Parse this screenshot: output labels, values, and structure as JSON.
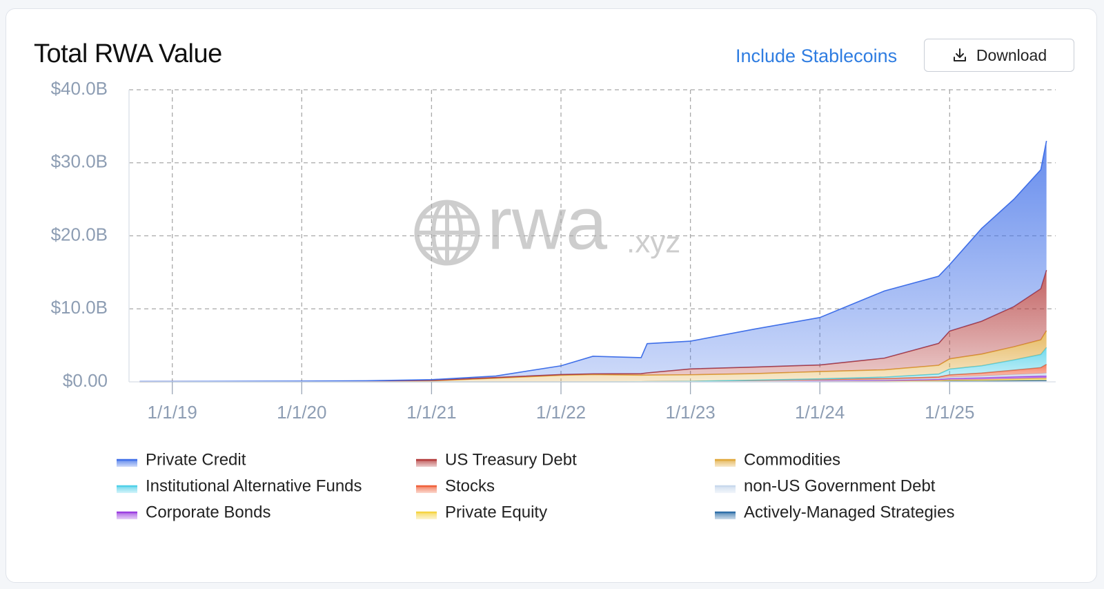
{
  "controls": {
    "toggle": "Include Stablecoins",
    "button": "Download"
  },
  "chart_data": {
    "type": "stacked-area",
    "title": "Total RWA Value",
    "watermark": [
      "rwa",
      ".xyz"
    ],
    "x": [
      "2018-10-01",
      "2019-01-01",
      "2019-07-01",
      "2020-01-01",
      "2020-07-01",
      "2021-01-01",
      "2021-07-01",
      "2022-01-01",
      "2022-04-01",
      "2022-08-15",
      "2022-09-01",
      "2023-01-01",
      "2023-07-01",
      "2024-01-01",
      "2024-07-01",
      "2024-12-01",
      "2025-01-01",
      "2025-04-01",
      "2025-07-01",
      "2025-09-15",
      "2025-10-01"
    ],
    "xlim": [
      "2018-09-01",
      "2025-10-27"
    ],
    "xticks": [
      {
        "value": "2019-01-01",
        "label": "1/1/19"
      },
      {
        "value": "2020-01-01",
        "label": "1/1/20"
      },
      {
        "value": "2021-01-01",
        "label": "1/1/21"
      },
      {
        "value": "2022-01-01",
        "label": "1/1/22"
      },
      {
        "value": "2023-01-01",
        "label": "1/1/23"
      },
      {
        "value": "2024-01-01",
        "label": "1/1/24"
      },
      {
        "value": "2025-01-01",
        "label": "1/1/25"
      }
    ],
    "ylim": [
      0,
      40
    ],
    "yticks": [
      {
        "value": 0,
        "label": "$0.00"
      },
      {
        "value": 10,
        "label": "$10.0B"
      },
      {
        "value": 20,
        "label": "$20.0B"
      },
      {
        "value": 30,
        "label": "$30.0B"
      },
      {
        "value": 40,
        "label": "$40.0B"
      }
    ],
    "grid": true,
    "legend": "bottom",
    "series": [
      {
        "name": "Private Credit",
        "color": "#3f6fe8",
        "values": [
          0.03,
          0.02,
          0.04,
          0.05,
          0.07,
          0.1,
          0.2,
          1.2,
          2.4,
          2.2,
          4.0,
          3.8,
          5.2,
          6.5,
          9.2,
          9.2,
          9.1,
          12.7,
          14.7,
          16.3,
          17.7
        ]
      },
      {
        "name": "US Treasury Debt",
        "color": "#b33a3a",
        "values": [
          0,
          0,
          0,
          0,
          0,
          0.05,
          0.1,
          0.1,
          0.1,
          0.2,
          0.3,
          0.8,
          0.9,
          0.9,
          1.6,
          3.0,
          3.8,
          4.5,
          5.5,
          7.0,
          8.3
        ]
      },
      {
        "name": "Commodities",
        "color": "#e0a83a",
        "values": [
          0.02,
          0.03,
          0.04,
          0.05,
          0.08,
          0.15,
          0.5,
          0.9,
          1.0,
          0.9,
          0.9,
          0.9,
          0.9,
          1.0,
          1.0,
          1.2,
          1.4,
          1.6,
          1.8,
          2.0,
          2.3
        ]
      },
      {
        "name": "Institutional Alternative Funds",
        "color": "#4fd0e8",
        "values": [
          0,
          0,
          0,
          0,
          0,
          0,
          0,
          0,
          0,
          0,
          0,
          0,
          0.05,
          0.1,
          0.2,
          0.4,
          0.8,
          1.0,
          1.4,
          1.8,
          2.3
        ]
      },
      {
        "name": "Stocks",
        "color": "#f0603a",
        "values": [
          0,
          0,
          0,
          0,
          0,
          0,
          0,
          0,
          0,
          0.02,
          0.03,
          0.05,
          0.08,
          0.1,
          0.15,
          0.2,
          0.3,
          0.4,
          0.6,
          0.8,
          1.2
        ]
      },
      {
        "name": "non-US Government Debt",
        "color": "#c8d8ec",
        "values": [
          0,
          0,
          0,
          0,
          0,
          0,
          0,
          0,
          0,
          0,
          0,
          0,
          0.05,
          0.08,
          0.1,
          0.15,
          0.2,
          0.25,
          0.3,
          0.35,
          0.4
        ]
      },
      {
        "name": "Corporate Bonds",
        "color": "#9b3fe0",
        "values": [
          0,
          0,
          0,
          0,
          0,
          0,
          0,
          0,
          0,
          0,
          0,
          0,
          0,
          0.05,
          0.1,
          0.15,
          0.2,
          0.25,
          0.3,
          0.3,
          0.3
        ]
      },
      {
        "name": "Private Equity",
        "color": "#f5d442",
        "values": [
          0,
          0,
          0,
          0,
          0,
          0,
          0,
          0,
          0,
          0,
          0,
          0.02,
          0.05,
          0.08,
          0.1,
          0.12,
          0.15,
          0.2,
          0.25,
          0.3,
          0.3
        ]
      },
      {
        "name": "Actively-Managed Strategies",
        "color": "#2f6fa8",
        "values": [
          0,
          0,
          0,
          0,
          0,
          0,
          0,
          0,
          0,
          0,
          0,
          0,
          0,
          0,
          0,
          0.05,
          0.1,
          0.1,
          0.15,
          0.2,
          0.2
        ]
      }
    ]
  }
}
